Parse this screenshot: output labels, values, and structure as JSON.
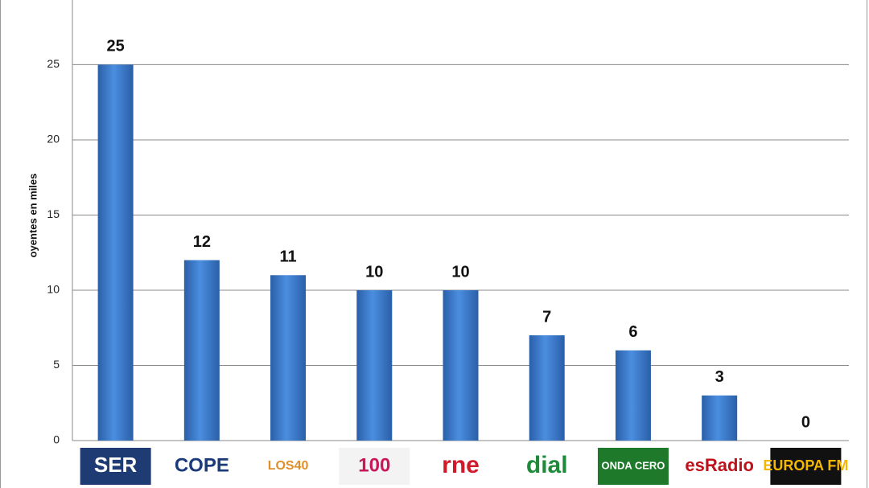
{
  "chart_data": {
    "type": "bar",
    "y_label": "oyentes en miles",
    "categories": [
      "SER",
      "COPE",
      "LOS40",
      "100",
      "rne",
      "dial",
      "ONDA CERO",
      "esRadio",
      "EUROPA FM"
    ],
    "values": [
      25,
      12,
      11,
      10,
      10,
      7,
      6,
      3,
      0
    ],
    "color": "#3d7fd3",
    "ylim": [
      0,
      29.3
    ],
    "yticks": [
      0,
      5,
      10,
      15,
      20,
      25
    ],
    "grid": true
  }
}
